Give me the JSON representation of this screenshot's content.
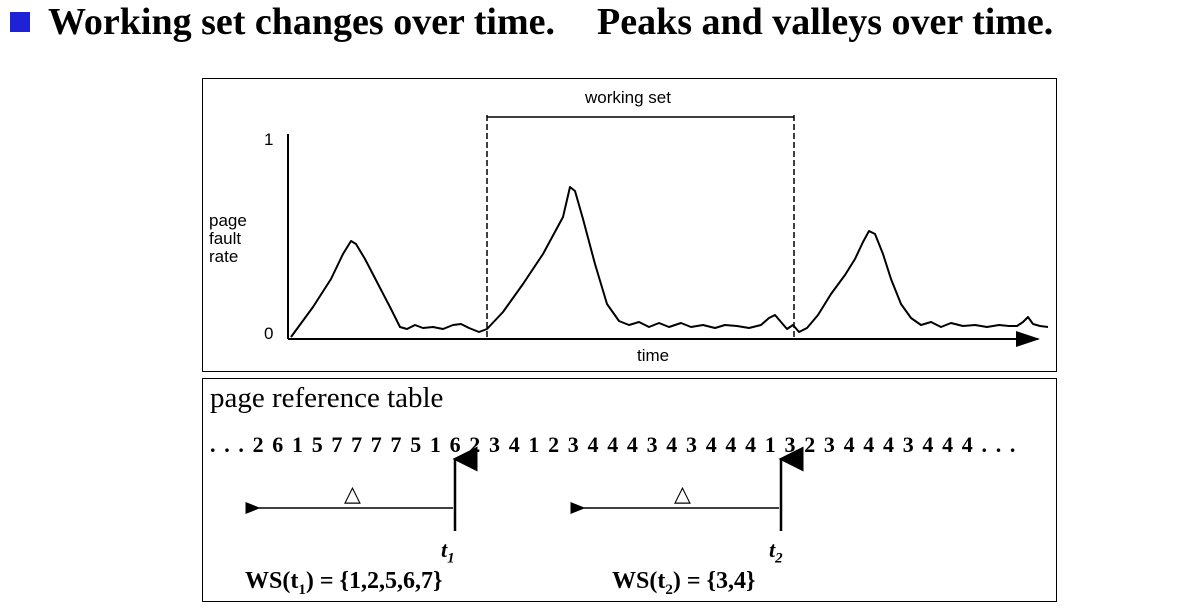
{
  "title": {
    "part1": "Working set changes over time.",
    "part2": "Peaks and valleys over time."
  },
  "graph": {
    "y_label_lines": [
      "page",
      "fault",
      "rate"
    ],
    "y_top": "1",
    "y_bottom": "0",
    "x_label": "time",
    "bracket_label": "working set"
  },
  "table": {
    "heading": "page reference table",
    "sequence": ". . . 2 6 1 5 7 7 7 7 5 1 6 2 3 4 1 2 3 4 4 4 3 4 3 4 4 4 1 3 2 3 4 4 4 3 4 4 4 . . .",
    "delta": "△",
    "t1": "t",
    "t1_sub": "1",
    "t2": "t",
    "t2_sub": "2",
    "ws1_pre": "WS(t",
    "ws1_sub": "1",
    "ws1_post": ") = {1,2,5,6,7}",
    "ws2_pre": "WS(t",
    "ws2_sub": "2",
    "ws2_post": ") = {3,4}"
  },
  "colors": {
    "bullet": "#1e21d6"
  }
}
